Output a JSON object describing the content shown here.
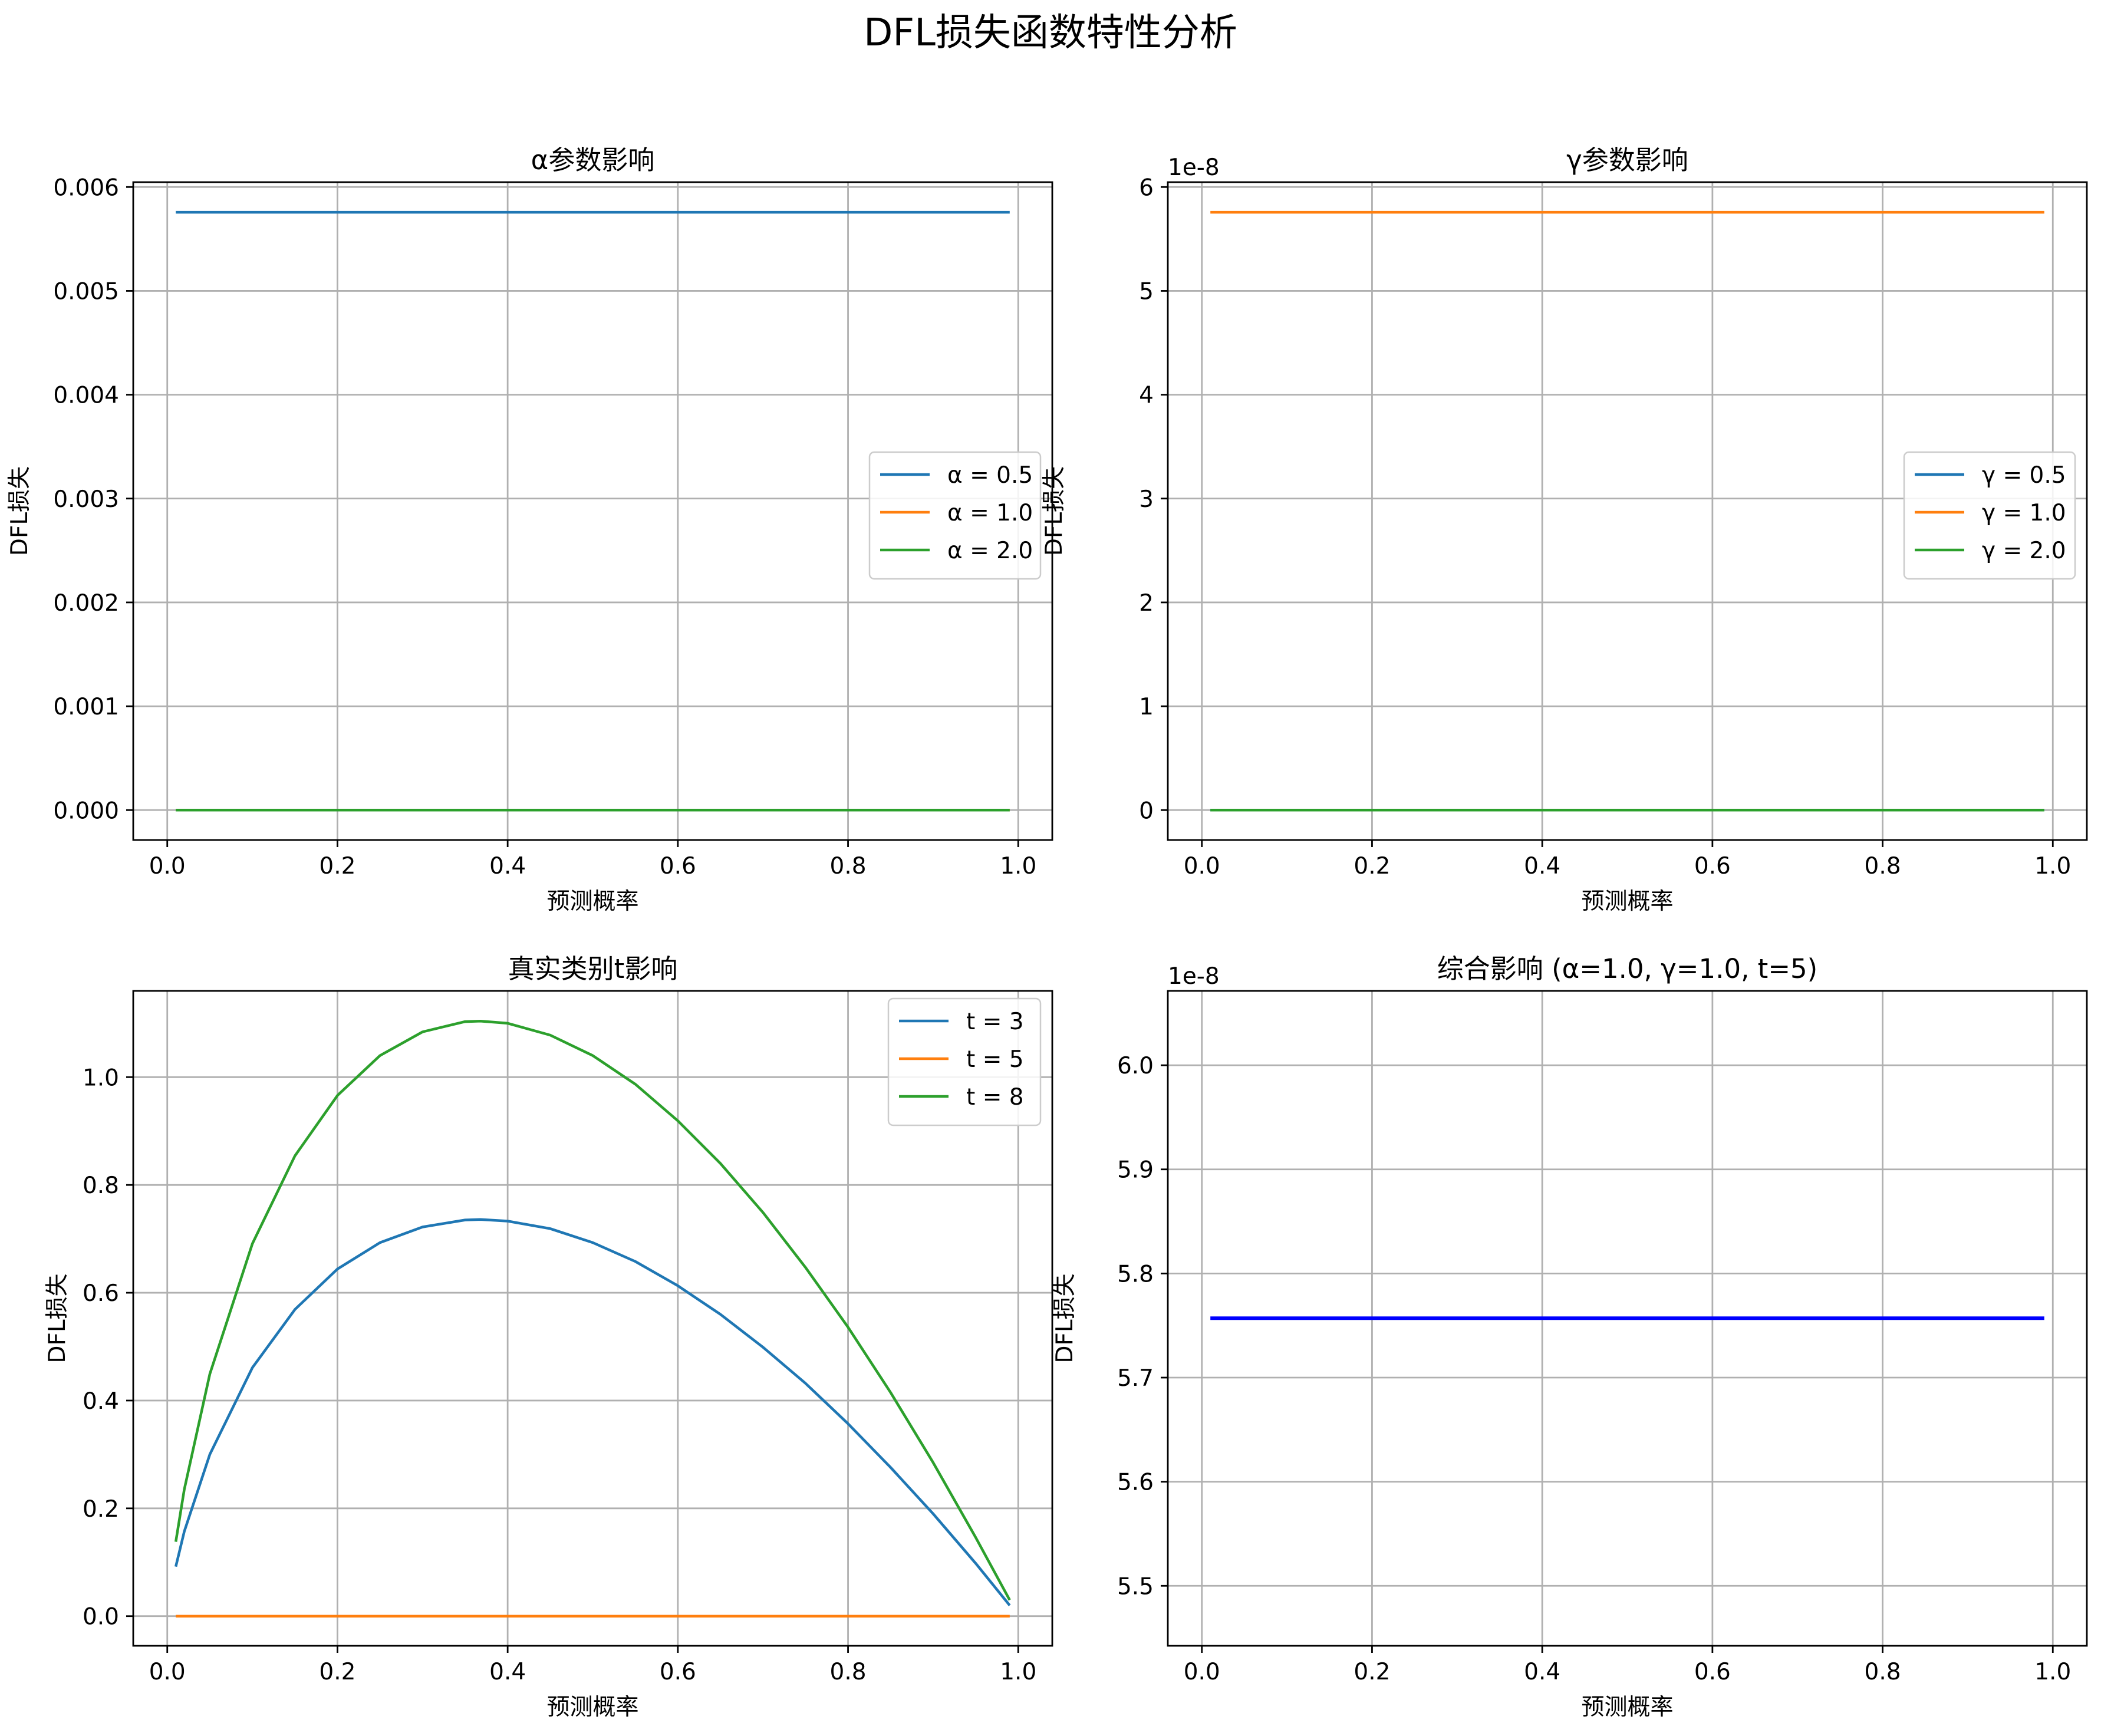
{
  "figure": {
    "title": "DFL损失函数特性分析"
  },
  "chart_data": [
    {
      "type": "line",
      "title": "α参数影响",
      "xlabel": "预测概率",
      "ylabel": "DFL损失",
      "xlim": [
        -0.04,
        1.04
      ],
      "ylim": [
        -0.000288,
        0.006047
      ],
      "xticks": [
        0.0,
        0.2,
        0.4,
        0.6,
        0.8,
        1.0
      ],
      "xtick_labels": [
        "0.0",
        "0.2",
        "0.4",
        "0.6",
        "0.8",
        "1.0"
      ],
      "yticks": [
        0,
        0.001,
        0.002,
        0.003,
        0.004,
        0.005,
        0.006
      ],
      "ytick_labels": [
        "0.000",
        "0.001",
        "0.002",
        "0.003",
        "0.004",
        "0.005",
        "0.006"
      ],
      "offset_text": "",
      "grid": true,
      "legend_position": "center-right",
      "series": [
        {
          "name": "α = 0.5",
          "color": "#1f77b4",
          "x": [
            0.01,
            0.99
          ],
          "y": [
            0.005757,
            0.005757
          ]
        },
        {
          "name": "α = 1.0",
          "color": "#ff7f0e",
          "x": [
            0.01,
            0.99
          ],
          "y": [
            0.0,
            0.0
          ]
        },
        {
          "name": "α = 2.0",
          "color": "#2ca02c",
          "x": [
            0.01,
            0.99
          ],
          "y": [
            0.0,
            0.0
          ]
        }
      ]
    },
    {
      "type": "line",
      "title": "γ参数影响",
      "xlabel": "预测概率",
      "ylabel": "DFL损失",
      "xlim": [
        -0.04,
        1.04
      ],
      "ylim": [
        -0.288,
        6.047
      ],
      "xticks": [
        0.0,
        0.2,
        0.4,
        0.6,
        0.8,
        1.0
      ],
      "xtick_labels": [
        "0.0",
        "0.2",
        "0.4",
        "0.6",
        "0.8",
        "1.0"
      ],
      "yticks": [
        0,
        1,
        2,
        3,
        4,
        5,
        6
      ],
      "ytick_labels": [
        "0",
        "1",
        "2",
        "3",
        "4",
        "5",
        "6"
      ],
      "offset_text": "1e-8",
      "grid": true,
      "legend_position": "center-right",
      "series": [
        {
          "name": "γ = 0.5",
          "color": "#1f77b4",
          "x": [
            0.01,
            0.99
          ],
          "y": [
            0.0,
            0.0
          ]
        },
        {
          "name": "γ = 1.0",
          "color": "#ff7f0e",
          "x": [
            0.01,
            0.99
          ],
          "y": [
            5.757,
            5.757
          ]
        },
        {
          "name": "γ = 2.0",
          "color": "#2ca02c",
          "x": [
            0.01,
            0.99
          ],
          "y": [
            0.0,
            0.0
          ]
        }
      ]
    },
    {
      "type": "line",
      "title": "真实类别t影响",
      "xlabel": "预测概率",
      "ylabel": "DFL损失",
      "xlim": [
        -0.04,
        1.04
      ],
      "ylim": [
        -0.055,
        1.16
      ],
      "xticks": [
        0.0,
        0.2,
        0.4,
        0.6,
        0.8,
        1.0
      ],
      "xtick_labels": [
        "0.0",
        "0.2",
        "0.4",
        "0.6",
        "0.8",
        "1.0"
      ],
      "yticks": [
        0.0,
        0.2,
        0.4,
        0.6,
        0.8,
        1.0
      ],
      "ytick_labels": [
        "0.0",
        "0.2",
        "0.4",
        "0.6",
        "0.8",
        "1.0"
      ],
      "offset_text": "",
      "grid": true,
      "legend_position": "top-right",
      "series": [
        {
          "name": "t = 3",
          "color": "#1f77b4",
          "x": [
            0.01,
            0.02,
            0.05,
            0.1,
            0.15,
            0.2,
            0.25,
            0.3,
            0.35,
            0.368,
            0.4,
            0.45,
            0.5,
            0.55,
            0.6,
            0.65,
            0.7,
            0.75,
            0.8,
            0.85,
            0.9,
            0.95,
            0.99
          ],
          "y": [
            0.092,
            0.157,
            0.3,
            0.461,
            0.569,
            0.644,
            0.693,
            0.722,
            0.735,
            0.736,
            0.733,
            0.719,
            0.693,
            0.658,
            0.613,
            0.56,
            0.499,
            0.432,
            0.357,
            0.276,
            0.19,
            0.098,
            0.02
          ]
        },
        {
          "name": "t = 5",
          "color": "#ff7f0e",
          "x": [
            0.01,
            0.99
          ],
          "y": [
            0.0,
            0.0
          ]
        },
        {
          "name": "t = 8",
          "color": "#2ca02c",
          "x": [
            0.01,
            0.02,
            0.05,
            0.1,
            0.15,
            0.2,
            0.25,
            0.3,
            0.35,
            0.368,
            0.4,
            0.45,
            0.5,
            0.55,
            0.6,
            0.65,
            0.7,
            0.75,
            0.8,
            0.85,
            0.9,
            0.95,
            0.99
          ],
          "y": [
            0.138,
            0.235,
            0.449,
            0.691,
            0.854,
            0.966,
            1.04,
            1.084,
            1.103,
            1.104,
            1.1,
            1.078,
            1.04,
            0.987,
            0.919,
            0.84,
            0.749,
            0.647,
            0.536,
            0.415,
            0.285,
            0.146,
            0.03
          ]
        }
      ]
    },
    {
      "type": "line",
      "title": "综合影响 (α=1.0, γ=1.0, t=5)",
      "xlabel": "预测概率",
      "ylabel": "DFL损失",
      "xlim": [
        -0.04,
        1.04
      ],
      "ylim": [
        5.4424,
        6.0714
      ],
      "xticks": [
        0.0,
        0.2,
        0.4,
        0.6,
        0.8,
        1.0
      ],
      "xtick_labels": [
        "0.0",
        "0.2",
        "0.4",
        "0.6",
        "0.8",
        "1.0"
      ],
      "yticks": [
        5.5,
        5.6,
        5.7,
        5.8,
        5.9,
        6.0
      ],
      "ytick_labels": [
        "5.5",
        "5.6",
        "5.7",
        "5.8",
        "5.9",
        "6.0"
      ],
      "offset_text": "1e-8",
      "grid": true,
      "legend_position": "",
      "series": [
        {
          "color": "#0000ff",
          "x": [
            0.01,
            0.99
          ],
          "y": [
            5.757,
            5.757
          ]
        }
      ]
    }
  ]
}
